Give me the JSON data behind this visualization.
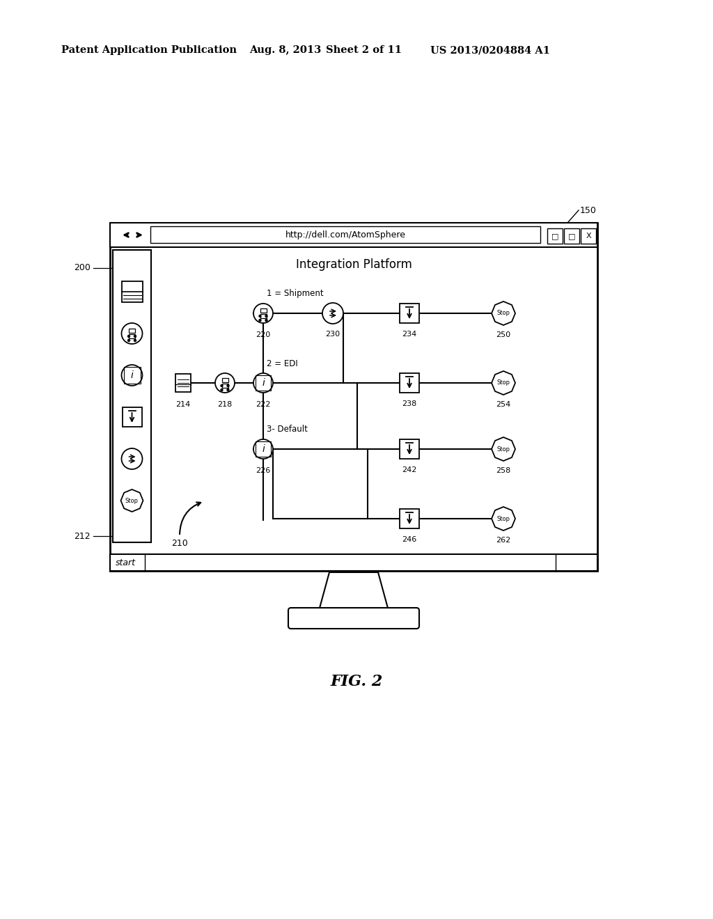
{
  "bg_color": "#ffffff",
  "header_text": "Patent Application Publication",
  "header_date": "Aug. 8, 2013",
  "header_sheet": "Sheet 2 of 11",
  "header_patent": "US 2013/0204884 A1",
  "fig_label": "FIG. 2",
  "browser_url": "http://dell.com/AtomSphere",
  "browser_title": "Integration Platform",
  "label_150": "150",
  "label_200": "200",
  "label_210": "210",
  "label_212": "212",
  "label_214": "214",
  "label_218": "218",
  "label_220": "220",
  "label_222": "222",
  "label_226": "226",
  "label_230": "230",
  "label_234": "234",
  "label_238": "238",
  "label_242": "242",
  "label_246": "246",
  "label_250": "250",
  "label_254": "254",
  "label_258": "258",
  "label_262": "262",
  "row1_label": "1 = Shipment",
  "row2_label": "2 = EDI",
  "row3_label": "3- Default",
  "start_tab": "start"
}
